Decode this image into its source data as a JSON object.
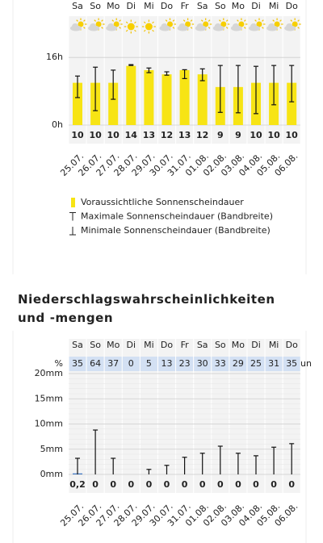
{
  "chart_data": [
    {
      "type": "bar",
      "weekdays": [
        "Sa",
        "So",
        "Mo",
        "Di",
        "Mi",
        "Do",
        "Fr",
        "Sa",
        "So",
        "Mo",
        "Di",
        "Mi",
        "Do"
      ],
      "conditions": [
        "partly-cloudy",
        "partly-cloudy",
        "partly-cloudy",
        "sunny",
        "sunny",
        "partly-cloudy",
        "partly-cloudy",
        "partly-cloudy",
        "partly-cloudy",
        "partly-cloudy",
        "partly-cloudy",
        "partly-cloudy",
        "partly-cloudy"
      ],
      "x": [
        "25.07.",
        "26.07.",
        "27.07.",
        "28.07.",
        "29.07.",
        "30.07.",
        "31.07.",
        "01.08.",
        "02.08.",
        "03.08.",
        "04.08.",
        "05.08.",
        "06.08."
      ],
      "values": [
        10,
        10,
        10,
        14,
        13,
        12,
        13,
        12,
        9,
        9,
        10,
        10,
        10
      ],
      "max": [
        11.6,
        13.7,
        13,
        14.3,
        13.5,
        12.6,
        13.1,
        13.3,
        14.1,
        14.1,
        13.9,
        14.1,
        14.1
      ],
      "min": [
        6.5,
        3.4,
        6.1,
        14.1,
        12.4,
        11.8,
        11,
        10.5,
        3,
        2.9,
        2.7,
        4.8,
        5.5
      ],
      "ylim": [
        0,
        21
      ],
      "yticks": [
        {
          "value": 0,
          "label": "0h"
        },
        {
          "value": 16,
          "label": "16h"
        }
      ],
      "color": "#f7e414",
      "legend": [
        "Voraussichtliche Sonnenscheindauer",
        "Maximale Sonnenscheindauer (Bandbreite)",
        "Minimale Sonnenscheindauer (Bandbreite)"
      ]
    },
    {
      "type": "bar",
      "title": "Niederschlagswahrscheinlichkeiten und -mengen",
      "weekdays": [
        "Sa",
        "So",
        "Mo",
        "Di",
        "Mi",
        "Do",
        "Fr",
        "Sa",
        "So",
        "Mo",
        "Di",
        "Mi",
        "Do"
      ],
      "probability_label": "%",
      "probabilities": [
        35,
        64,
        37,
        0,
        5,
        13,
        23,
        30,
        33,
        29,
        25,
        31,
        35
      ],
      "probability_suffix": "un",
      "x": [
        "25.07.",
        "26.07.",
        "27.07.",
        "28.07.",
        "29.07.",
        "30.07.",
        "31.07.",
        "01.08.",
        "02.08.",
        "03.08.",
        "04.08.",
        "05.08.",
        "06.08."
      ],
      "values": [
        0.2,
        0,
        0,
        0,
        0,
        0,
        0,
        0,
        0,
        0,
        0,
        0,
        0
      ],
      "value_labels": [
        "0,2",
        "0",
        "0",
        "0",
        "0",
        "0",
        "0",
        "0",
        "0",
        "0",
        "0",
        "0",
        "0"
      ],
      "max": [
        3.2,
        8.8,
        3.2,
        0,
        1,
        1.8,
        3.4,
        4.2,
        5.6,
        4.2,
        3.7,
        5.4,
        6.1
      ],
      "ylim": [
        0,
        20
      ],
      "yticks": [
        {
          "value": 0,
          "label": "0mm"
        },
        {
          "value": 5,
          "label": "5mm"
        },
        {
          "value": 10,
          "label": "10mm"
        },
        {
          "value": 15,
          "label": "15mm"
        },
        {
          "value": 20,
          "label": "20mm"
        }
      ],
      "color": "#3f78c4"
    }
  ]
}
